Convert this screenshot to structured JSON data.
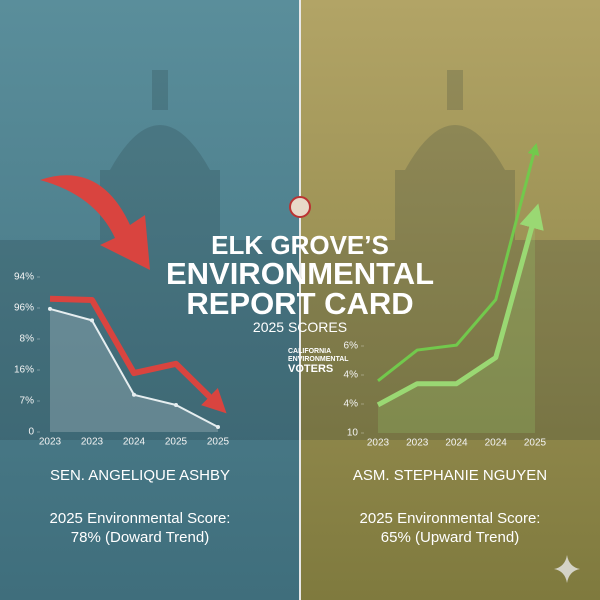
{
  "header": {
    "line1": "ELK GROVE’S",
    "line2": "ENVIRONMENTAL",
    "line3": "REPORT CARD",
    "subtitle": "2025 SCORES",
    "logo": [
      "CALIFORNIA",
      "ENVIRONMENTAL",
      "VOTERS"
    ]
  },
  "panels": [
    {
      "name": "SEN. ANGELIQUE ASHBY",
      "score_label": "2025 Environmental Score:",
      "score": "78% (Doward Trend)"
    },
    {
      "name": "ASM. STEPHANIE NGUYEN",
      "score_label": "2025 Environmental Score:",
      "score": "65% (Upward Trend)"
    }
  ],
  "chart_data": [
    {
      "type": "line",
      "categories": [
        "2023",
        "2023",
        "2024",
        "2025",
        "2025"
      ],
      "ylim": [
        0,
        5
      ],
      "yticks": [
        0,
        {
          "value": 1,
          "label": "7%"
        },
        {
          "value": 2,
          "label": "16%"
        },
        {
          "value": 3,
          "label": "8%"
        },
        {
          "value": 4,
          "label": "96%"
        },
        {
          "value": 5,
          "label": "94%"
        }
      ],
      "series": [
        {
          "color": "#e6eef0",
          "values": [
            3.97,
            3.6,
            1.2,
            0.87,
            0.16
          ]
        },
        {
          "color": "#d9443f",
          "values": [
            4.3,
            4.26,
            1.9,
            2.2,
            0.87
          ]
        }
      ]
    },
    {
      "type": "line",
      "categories": [
        "2023",
        "2023",
        "2024",
        "2024",
        "2025"
      ],
      "ylim": [
        0,
        10
      ],
      "yticks": [
        {
          "value": 0,
          "label": "10"
        },
        {
          "value": 1,
          "label": "4%"
        },
        {
          "value": 2,
          "label": "4%"
        },
        {
          "value": 3,
          "label": "6%"
        }
      ],
      "series": [
        {
          "color": "#9ad873",
          "values": [
            0.97,
            1.7,
            1.7,
            2.6,
            7.5
          ]
        },
        {
          "color": "#72c94c",
          "values": [
            1.8,
            2.86,
            3.03,
            4.6,
            9.8
          ]
        }
      ]
    }
  ]
}
